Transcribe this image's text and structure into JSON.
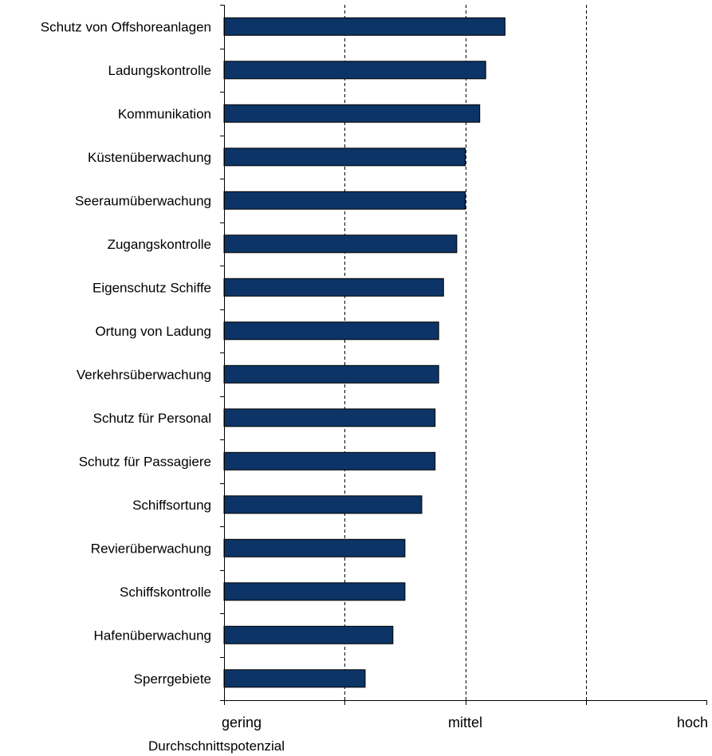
{
  "chart_data": {
    "type": "bar",
    "orientation": "horizontal",
    "categories": [
      "Schutz von Offshoreanlagen",
      "Ladungskontrolle",
      "Kommunikation",
      "Küstenüberwachung",
      "Seeraumüberwachung",
      "Zugangskontrolle",
      "Eigenschutz Schiffe",
      "Ortung von Ladung",
      "Verkehrsüberwachung",
      "Schutz für Personal",
      "Schutz für Passagiere",
      "Schiffsortung",
      "Revierüberwachung",
      "Schiffskontrolle",
      "Hafenüberwachung",
      "Sperrgebiete"
    ],
    "values": [
      3.33,
      3.17,
      3.12,
      3.0,
      3.0,
      2.93,
      2.82,
      2.78,
      2.78,
      2.75,
      2.75,
      2.64,
      2.5,
      2.5,
      2.4,
      2.17
    ],
    "xlim": [
      1,
      5
    ],
    "xticks": [
      {
        "value": 1,
        "label": "gering"
      },
      {
        "value": 3,
        "label": "mittel"
      },
      {
        "value": 5,
        "label": "hoch"
      }
    ],
    "gridlines": [
      2,
      3,
      4
    ],
    "grid": true,
    "xlabel": "Durchschnittspotenzial",
    "ylabel": "",
    "title": "",
    "bar_color": "#0c3466"
  }
}
